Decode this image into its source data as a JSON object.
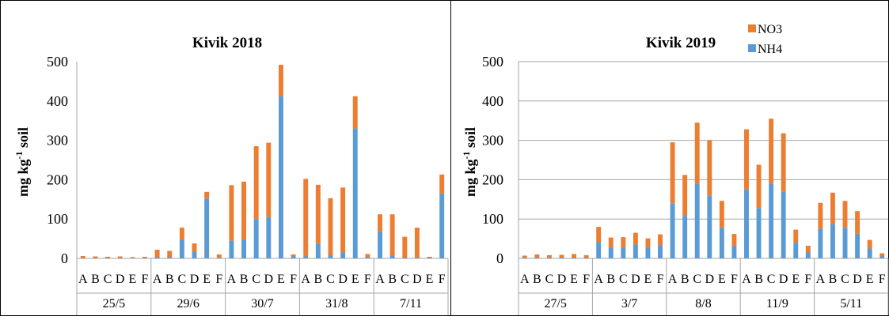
{
  "colors": {
    "nh4": "#5B9BD5",
    "no3": "#ED7D31",
    "grid": "#A6A6A6",
    "frame": "#000000"
  },
  "legend": {
    "no3": "NO3",
    "nh4": "NH4"
  },
  "chart_data": [
    {
      "type": "bar",
      "stacked": true,
      "title": "Kivik 2018",
      "ylabel": "mg kg-1 soil",
      "ylim": [
        0,
        500
      ],
      "yticks": [
        "0",
        "100",
        "200",
        "300",
        "400",
        "500"
      ],
      "grid": false,
      "legend": "none",
      "groups": [
        {
          "label": "25/5",
          "categories": [
            "A",
            "B",
            "C",
            "D",
            "E",
            "F"
          ]
        },
        {
          "label": "29/6",
          "categories": [
            "A",
            "B",
            "C",
            "D",
            "E",
            "F"
          ]
        },
        {
          "label": "30/7",
          "categories": [
            "A",
            "B",
            "C",
            "D",
            "E",
            "F"
          ]
        },
        {
          "label": "31/8",
          "categories": [
            "A",
            "B",
            "C",
            "D",
            "E",
            "F"
          ]
        },
        {
          "label": "7/11",
          "categories": [
            "A",
            "B",
            "C",
            "D",
            "E",
            "F"
          ]
        }
      ],
      "series": [
        {
          "name": "NH4",
          "values": [
            1,
            1,
            1,
            1,
            1,
            1,
            4,
            3,
            47,
            16,
            152,
            2,
            45,
            47,
            100,
            105,
            412,
            5,
            5,
            37,
            8,
            15,
            330,
            3,
            68,
            8,
            2,
            2,
            2,
            165
          ]
        },
        {
          "name": "NO3",
          "values": [
            5,
            4,
            3,
            4,
            2,
            3,
            18,
            16,
            31,
            22,
            17,
            8,
            141,
            148,
            185,
            189,
            80,
            5,
            197,
            150,
            145,
            165,
            82,
            8,
            44,
            104,
            53,
            76,
            2,
            48
          ]
        }
      ]
    },
    {
      "type": "bar",
      "stacked": true,
      "title": "Kivik 2019",
      "ylabel": "mg kg-1 soil",
      "ylim": [
        0,
        500
      ],
      "yticks": [
        "0",
        "100",
        "200",
        "300",
        "400",
        "500"
      ],
      "grid": true,
      "legend": "top-right",
      "groups": [
        {
          "label": "27/5",
          "categories": [
            "A",
            "B",
            "C",
            "D",
            "E",
            "F"
          ]
        },
        {
          "label": "3/7",
          "categories": [
            "A",
            "B",
            "C",
            "D",
            "E",
            "F"
          ]
        },
        {
          "label": "8/8",
          "categories": [
            "A",
            "B",
            "C",
            "D",
            "E",
            "F"
          ]
        },
        {
          "label": "11/9",
          "categories": [
            "A",
            "B",
            "C",
            "D",
            "E",
            "F"
          ]
        },
        {
          "label": "5/11",
          "categories": [
            "A",
            "B",
            "C",
            "D",
            "E",
            "F"
          ]
        }
      ],
      "series": [
        {
          "name": "NH4",
          "values": [
            2,
            2,
            2,
            2,
            2,
            2,
            42,
            28,
            28,
            35,
            28,
            33,
            140,
            108,
            190,
            160,
            78,
            32,
            175,
            128,
            190,
            170,
            40,
            15,
            75,
            88,
            78,
            63,
            25,
            5
          ]
        },
        {
          "name": "NO3",
          "values": [
            5,
            8,
            6,
            7,
            9,
            6,
            38,
            25,
            26,
            30,
            23,
            28,
            155,
            104,
            155,
            140,
            68,
            30,
            153,
            110,
            165,
            148,
            33,
            17,
            66,
            79,
            68,
            57,
            22,
            8
          ]
        }
      ]
    }
  ]
}
